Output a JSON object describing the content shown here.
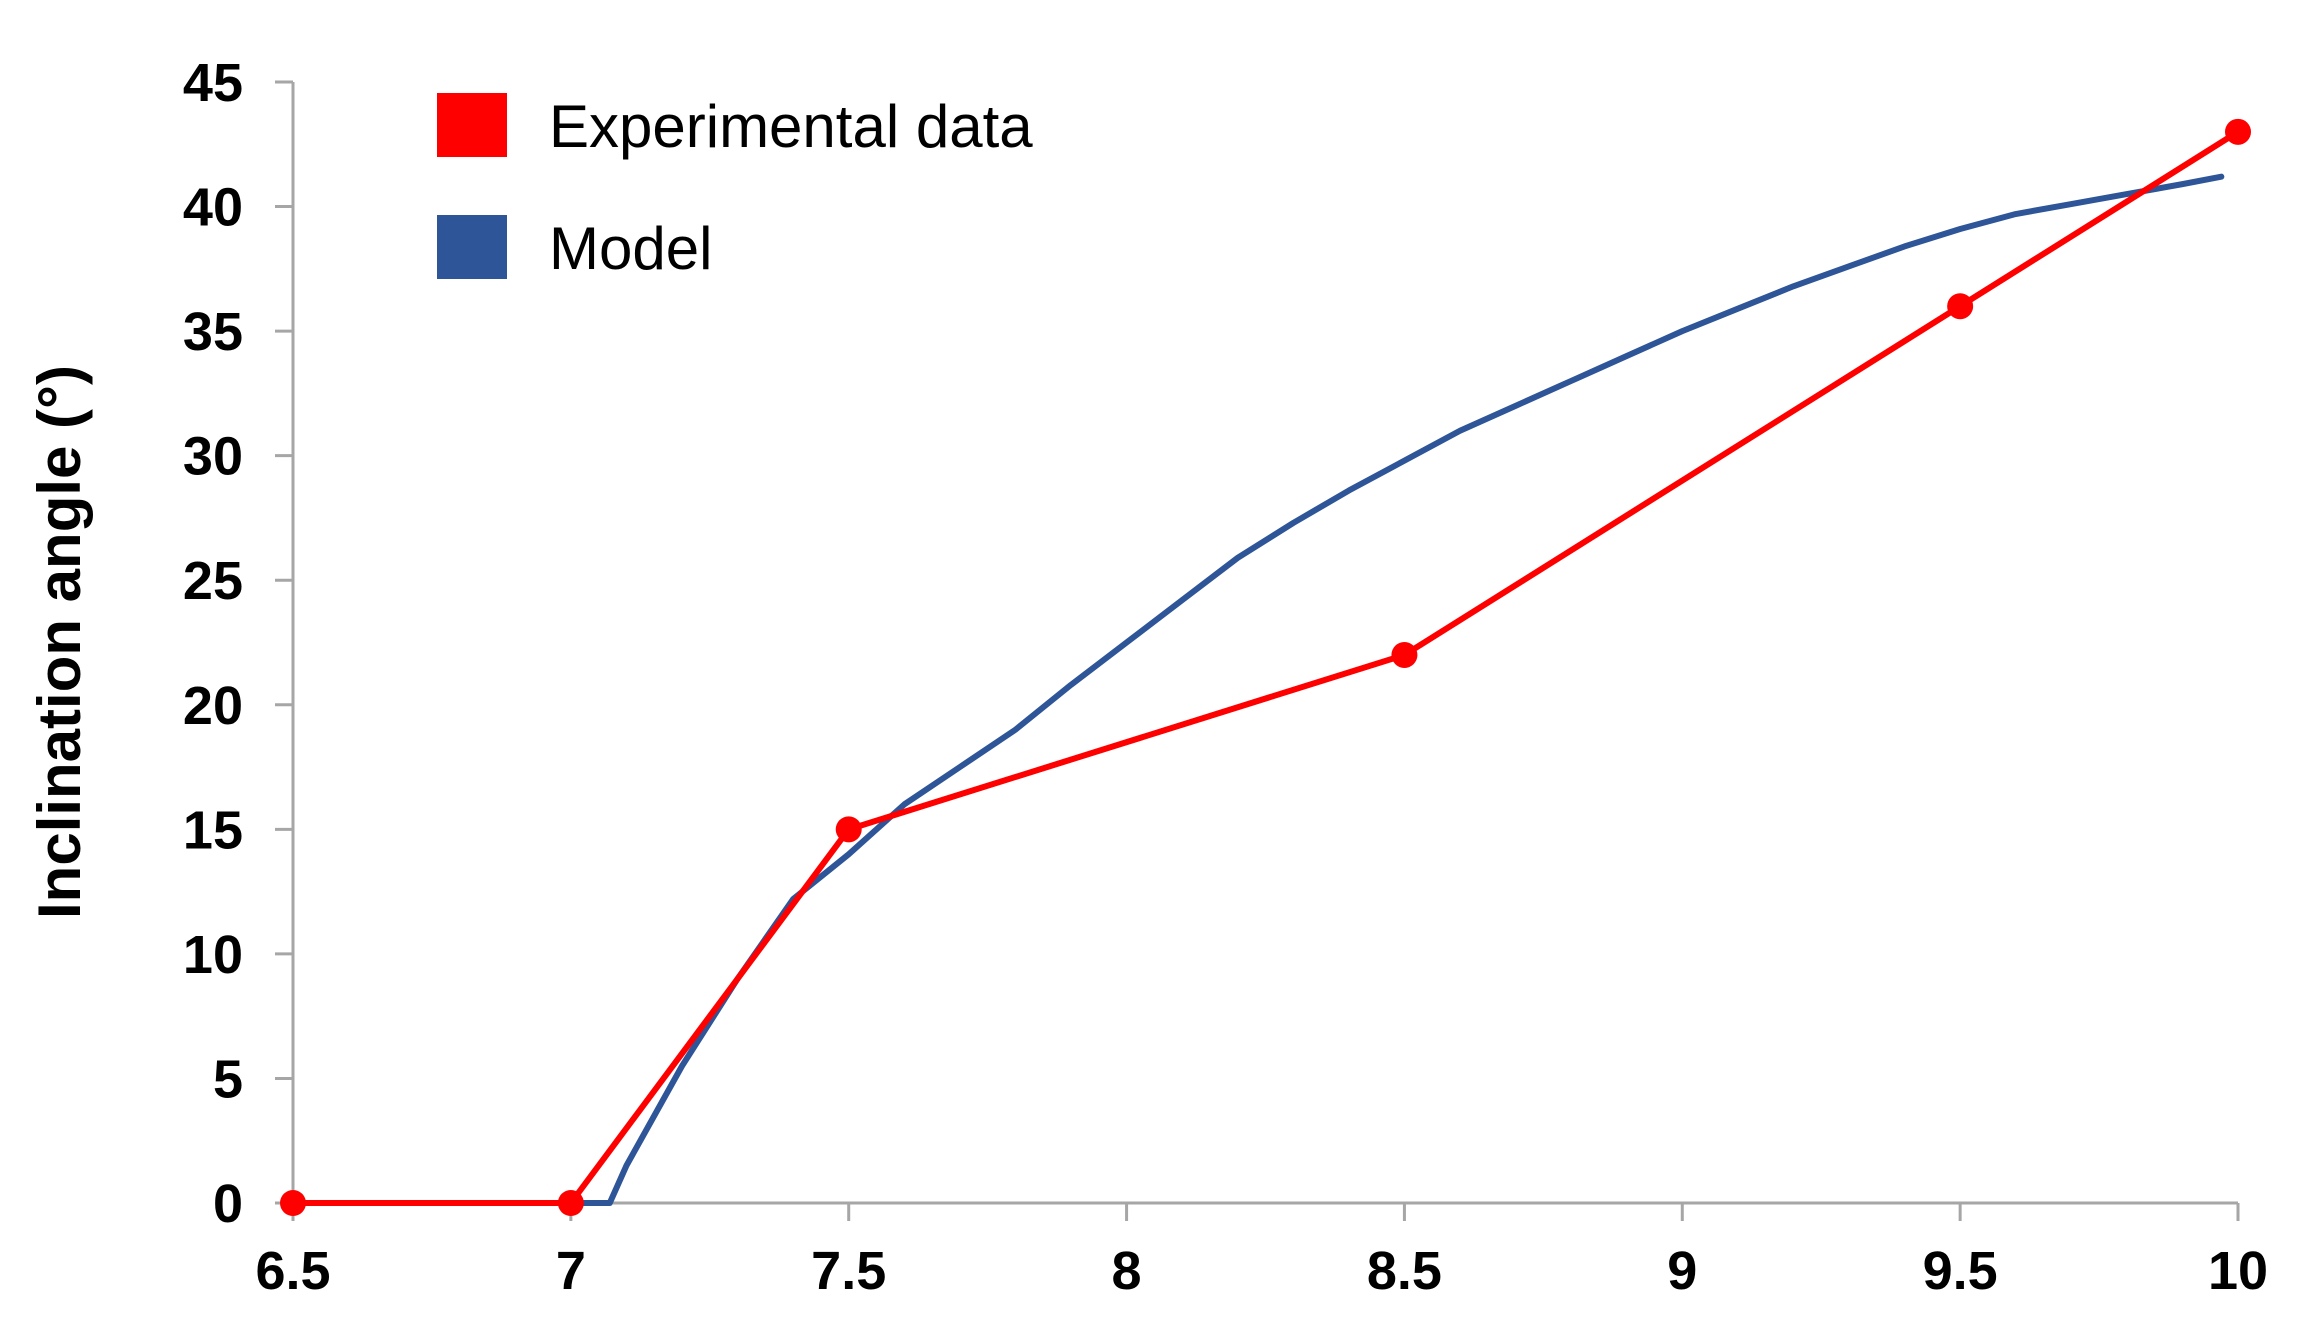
{
  "chart_data": {
    "type": "line",
    "title": "",
    "xlabel": "",
    "ylabel": "Inclination angle (°)",
    "xlim": [
      6.5,
      10
    ],
    "ylim": [
      0,
      45
    ],
    "xticks": [
      "6.5",
      "7",
      "7.5",
      "8",
      "8.5",
      "9",
      "9.5",
      "10"
    ],
    "yticks": [
      "0",
      "5",
      "10",
      "15",
      "20",
      "25",
      "30",
      "35",
      "40",
      "45"
    ],
    "grid": false,
    "legend_position": "top-left",
    "series": [
      {
        "name": "Experimental data",
        "color": "#ff0000",
        "markers": true,
        "x": [
          6.5,
          7,
          7.5,
          8.5,
          9.5,
          10
        ],
        "y": [
          0,
          0,
          15,
          22,
          36,
          43
        ]
      },
      {
        "name": "Model",
        "color": "#2e5597",
        "markers": false,
        "x": [
          7.0,
          7.07,
          7.1,
          7.2,
          7.3,
          7.4,
          7.5,
          7.6,
          7.7,
          7.8,
          7.9,
          8.0,
          8.1,
          8.2,
          8.3,
          8.4,
          8.5,
          8.6,
          8.7,
          8.8,
          8.9,
          9.0,
          9.1,
          9.2,
          9.3,
          9.4,
          9.5,
          9.6,
          9.7,
          9.8,
          9.9,
          9.97
        ],
        "y": [
          0,
          0,
          1.5,
          5.5,
          9.0,
          12.2,
          14.0,
          16.0,
          17.5,
          19.0,
          20.8,
          22.5,
          24.2,
          25.9,
          27.3,
          28.6,
          29.8,
          31.0,
          32.0,
          33.0,
          34.0,
          35.0,
          35.9,
          36.8,
          37.6,
          38.4,
          39.1,
          39.7,
          40.1,
          40.5,
          40.9,
          41.2
        ]
      }
    ]
  }
}
